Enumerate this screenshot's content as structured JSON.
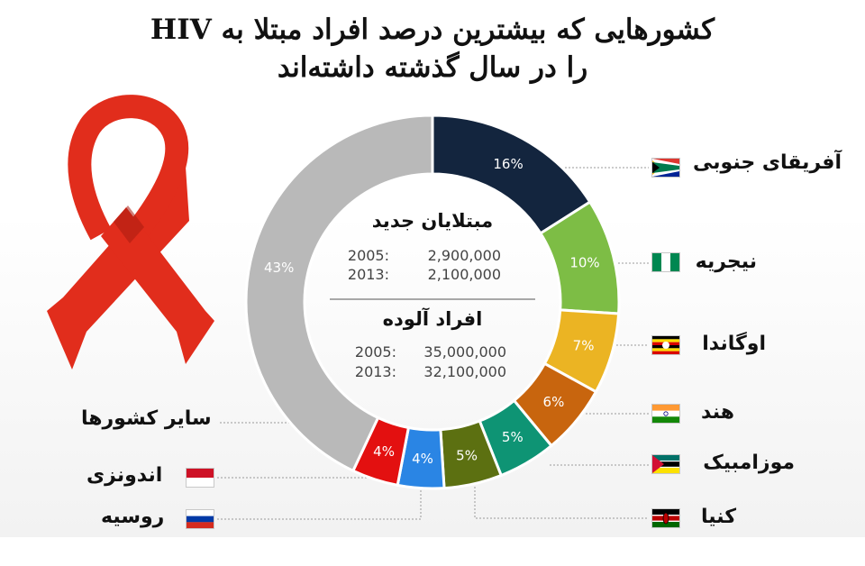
{
  "title_line1": "کشورهایی که بیشترین درصد افراد مبتلا به HIV",
  "title_line2": "را در سال گذشته داشته‌اند",
  "colors": {
    "ribbon": "#e12d1c",
    "ribbon_dark": "#a91c10",
    "leader_line": "#9a9a9a"
  },
  "center": {
    "new_cases": {
      "heading": "مبتلایان جدید",
      "rows": [
        {
          "year": "2005:",
          "value": "2,900,000"
        },
        {
          "year": "2013:",
          "value": "2,100,000"
        }
      ]
    },
    "infected": {
      "heading": "افراد آلوده",
      "rows": [
        {
          "year": "2005:",
          "value": "35,000,000"
        },
        {
          "year": "2013:",
          "value": "32,100,000"
        }
      ]
    }
  },
  "chart_data": {
    "type": "pie",
    "donut": true,
    "title": "کشورهایی که بیشترین درصد افراد مبتلا به HIV را در سال گذشته داشته‌اند",
    "slices": [
      {
        "name": "آفریقای جنوبی",
        "value": 16,
        "label": "16%",
        "color": "#13253e",
        "flag": "south-africa-flag-icon"
      },
      {
        "name": "نیجریه",
        "value": 10,
        "label": "10%",
        "color": "#7dbd45",
        "flag": "nigeria-flag-icon"
      },
      {
        "name": "اوگاندا",
        "value": 7,
        "label": "7%",
        "color": "#ebb423",
        "flag": "uganda-flag-icon"
      },
      {
        "name": "هند",
        "value": 6,
        "label": "6%",
        "color": "#c8650e",
        "flag": "india-flag-icon"
      },
      {
        "name": "موزامبیک",
        "value": 5,
        "label": "5%",
        "color": "#0e9474",
        "flag": "mozambique-flag-icon"
      },
      {
        "name": "کنیا",
        "value": 5,
        "label": "5%",
        "color": "#5c7011",
        "flag": "kenya-flag-icon"
      },
      {
        "name": "روسیه",
        "value": 4,
        "label": "4%",
        "color": "#2a85e4",
        "flag": "russia-flag-icon"
      },
      {
        "name": "اندونزی",
        "value": 4,
        "label": "4%",
        "color": "#e31010",
        "flag": "indonesia-flag-icon"
      },
      {
        "name": "سایر کشورها",
        "value": 43,
        "label": "43%",
        "color": "#b9b9b9",
        "flag": ""
      }
    ]
  }
}
